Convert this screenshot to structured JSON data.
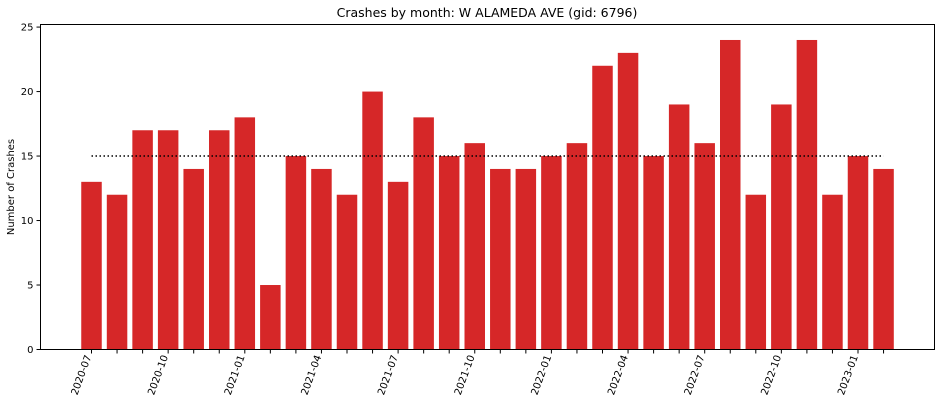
{
  "chart_data": {
    "type": "bar",
    "title": "Crashes by month: W ALAMEDA AVE (gid: 6796)",
    "xlabel": "",
    "ylabel": "Number of Crashes",
    "ylim": [
      0,
      25.2
    ],
    "yticks": [
      0,
      5,
      10,
      15,
      20,
      25
    ],
    "categories": [
      "2020-07",
      "2020-08",
      "2020-09",
      "2020-10",
      "2020-11",
      "2020-12",
      "2021-01",
      "2021-02",
      "2021-03",
      "2021-04",
      "2021-05",
      "2021-06",
      "2021-07",
      "2021-08",
      "2021-09",
      "2021-10",
      "2021-11",
      "2021-12",
      "2022-01",
      "2022-02",
      "2022-03",
      "2022-04",
      "2022-05",
      "2022-06",
      "2022-07",
      "2022-08",
      "2022-09",
      "2022-10",
      "2022-11",
      "2022-12",
      "2023-01",
      "2023-02"
    ],
    "xtick_labels": [
      "2020-07",
      "",
      "",
      "2020-10",
      "",
      "",
      "2021-01",
      "",
      "",
      "2021-04",
      "",
      "",
      "2021-07",
      "",
      "",
      "2021-10",
      "",
      "",
      "2022-01",
      "",
      "",
      "2022-04",
      "",
      "",
      "2022-07",
      "",
      "",
      "2022-10",
      "",
      "",
      "2023-01",
      ""
    ],
    "values": [
      13,
      12,
      17,
      17,
      14,
      17,
      18,
      5,
      15,
      14,
      12,
      20,
      13,
      18,
      15,
      16,
      14,
      14,
      15,
      16,
      22,
      23,
      15,
      19,
      16,
      24,
      12,
      19,
      24,
      12,
      15,
      14
    ],
    "mean_line": 15,
    "colors": {
      "bar": "#d62728",
      "mean_line": "#000000",
      "axis": "#000000"
    },
    "grid": false
  }
}
